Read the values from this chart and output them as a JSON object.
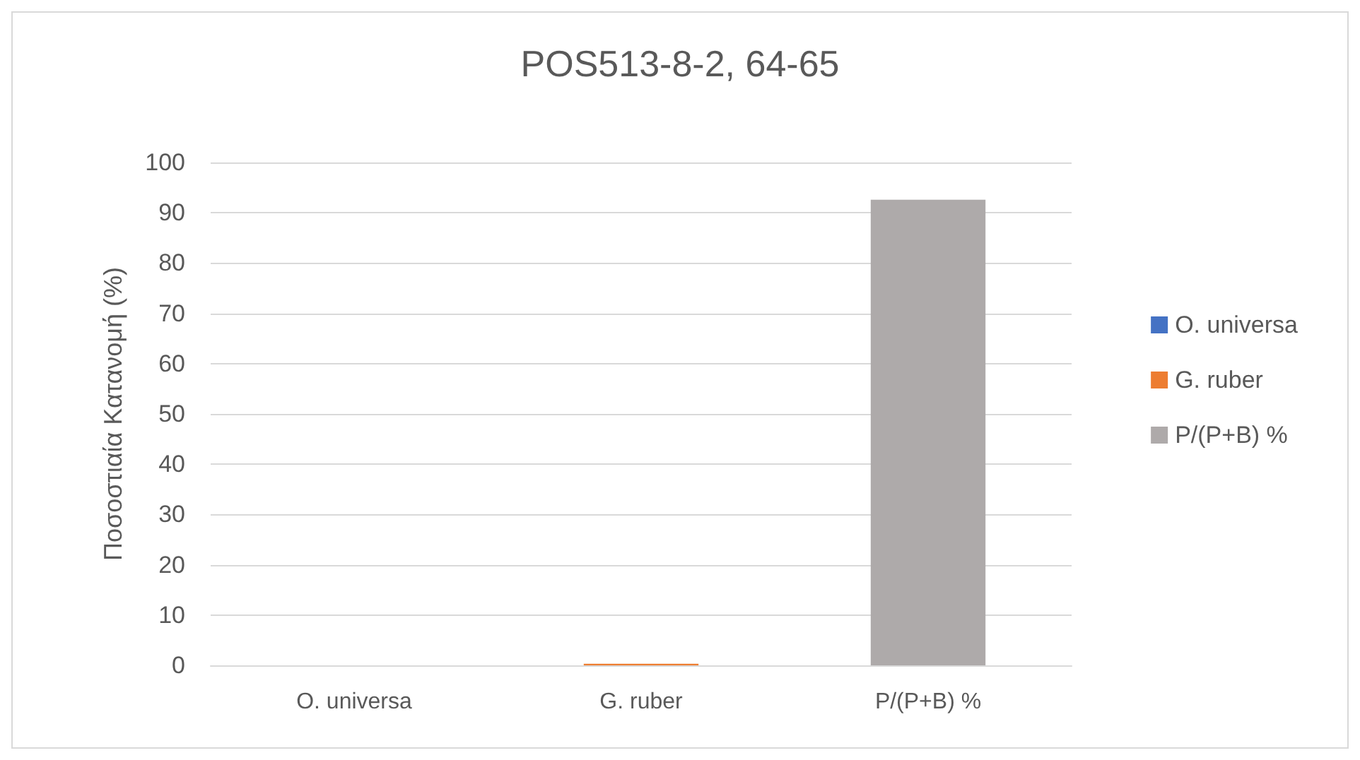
{
  "chart_data": {
    "type": "bar",
    "title": "POS513-8-2, 64-65",
    "ylabel": "Ποσοστιαία Κατανομή (%)",
    "categories": [
      "O. universa",
      "G. ruber",
      "P/(P+B) %"
    ],
    "series": [
      {
        "name": "O. universa",
        "color": "#4472c4",
        "values": [
          0,
          null,
          null
        ]
      },
      {
        "name": "G. ruber",
        "color": "#ed7d31",
        "values": [
          null,
          0.3,
          null
        ]
      },
      {
        "name": "P/(P+B) %",
        "color": "#aeaaaa",
        "values": [
          null,
          null,
          92.6
        ]
      }
    ],
    "ylim": [
      0,
      100
    ],
    "yticks": [
      0,
      10,
      20,
      30,
      40,
      50,
      60,
      70,
      80,
      90,
      100
    ],
    "grid": "y",
    "legend": "right"
  }
}
